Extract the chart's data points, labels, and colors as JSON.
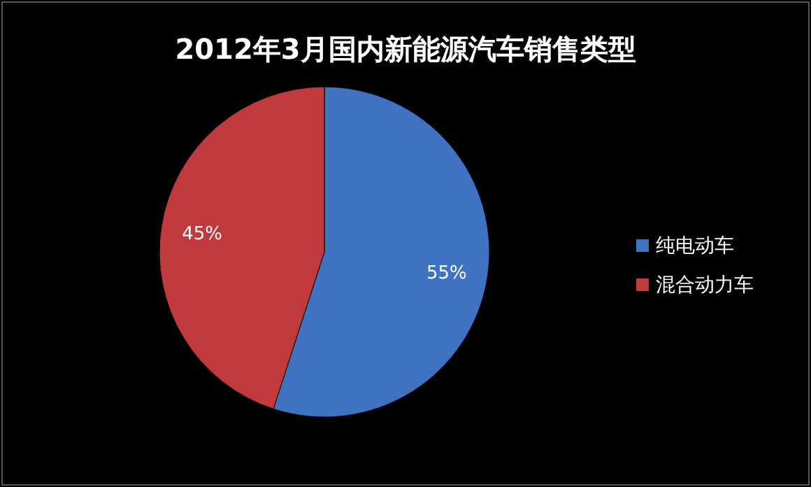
{
  "chart_data": {
    "type": "pie",
    "title": "2012年3月国内新能源汽车销售类型",
    "categories": [
      "纯电动车",
      "混合动力车"
    ],
    "values": [
      55,
      45
    ],
    "colors": [
      "#3f72c0",
      "#c0393c"
    ],
    "value_labels": [
      "55%",
      "45%"
    ],
    "legend": "right"
  }
}
